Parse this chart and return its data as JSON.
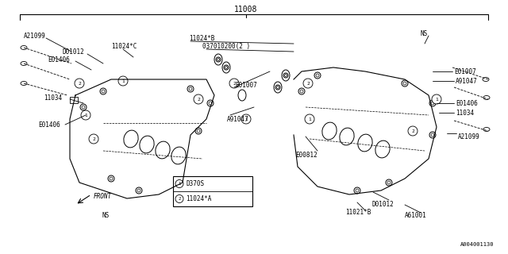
{
  "title": "11008",
  "bg_color": "#ffffff",
  "line_color": "#000000",
  "fig_width": 6.4,
  "fig_height": 3.2,
  "dpi": 100,
  "part_number_bottom_right": "A004001130",
  "legend_items": [
    {
      "symbol": "1",
      "label": "D370S"
    },
    {
      "symbol": "2",
      "label": "11024*A"
    }
  ],
  "labels_left_block": [
    "A21099",
    "D01012",
    "11024*C",
    "E01406",
    "11034",
    "E01406",
    "NS",
    "FRONT"
  ],
  "labels_center": [
    "11024*B",
    "037010200(2)",
    "E01007",
    "A91047"
  ],
  "labels_right_block": [
    "NS",
    "E01007",
    "A91047",
    "E01406",
    "11034",
    "E00812",
    "D01012",
    "11021*B",
    "A61001",
    "A21099"
  ]
}
